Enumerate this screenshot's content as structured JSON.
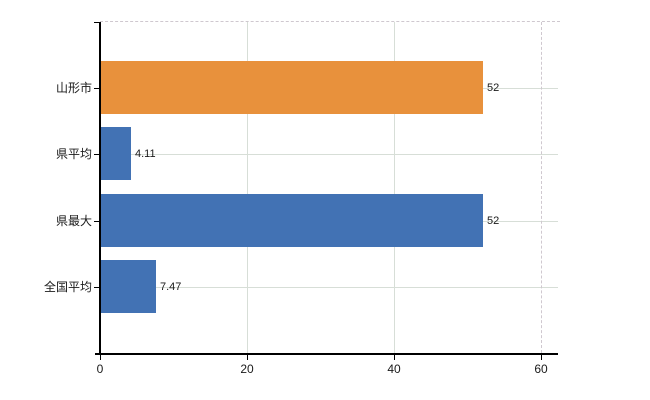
{
  "chart_data": {
    "type": "bar",
    "orientation": "horizontal",
    "title": "",
    "categories": [
      "山形市",
      "県平均",
      "県最大",
      "全国平均"
    ],
    "values": [
      52,
      4.11,
      52,
      7.47
    ],
    "value_labels": [
      "52",
      "4.11",
      "52",
      "7.47"
    ],
    "bar_colors": [
      "#E8913C",
      "#4272B4",
      "#4272B4",
      "#4272B4"
    ],
    "x_ticks": [
      0,
      20,
      40,
      60
    ],
    "x_tick_labels": [
      "0",
      "20",
      "40",
      "60"
    ],
    "xlim": [
      0,
      62.3
    ],
    "grid": true,
    "legend": false
  },
  "colors": {
    "highlight_bar": "#E8913C",
    "default_bar": "#4272B4",
    "gridline": "#D7DED7",
    "dashed_border": "#CFC8CF",
    "axis": "#000000",
    "text": "#1A1A1A",
    "background": "#FFFFFF"
  }
}
